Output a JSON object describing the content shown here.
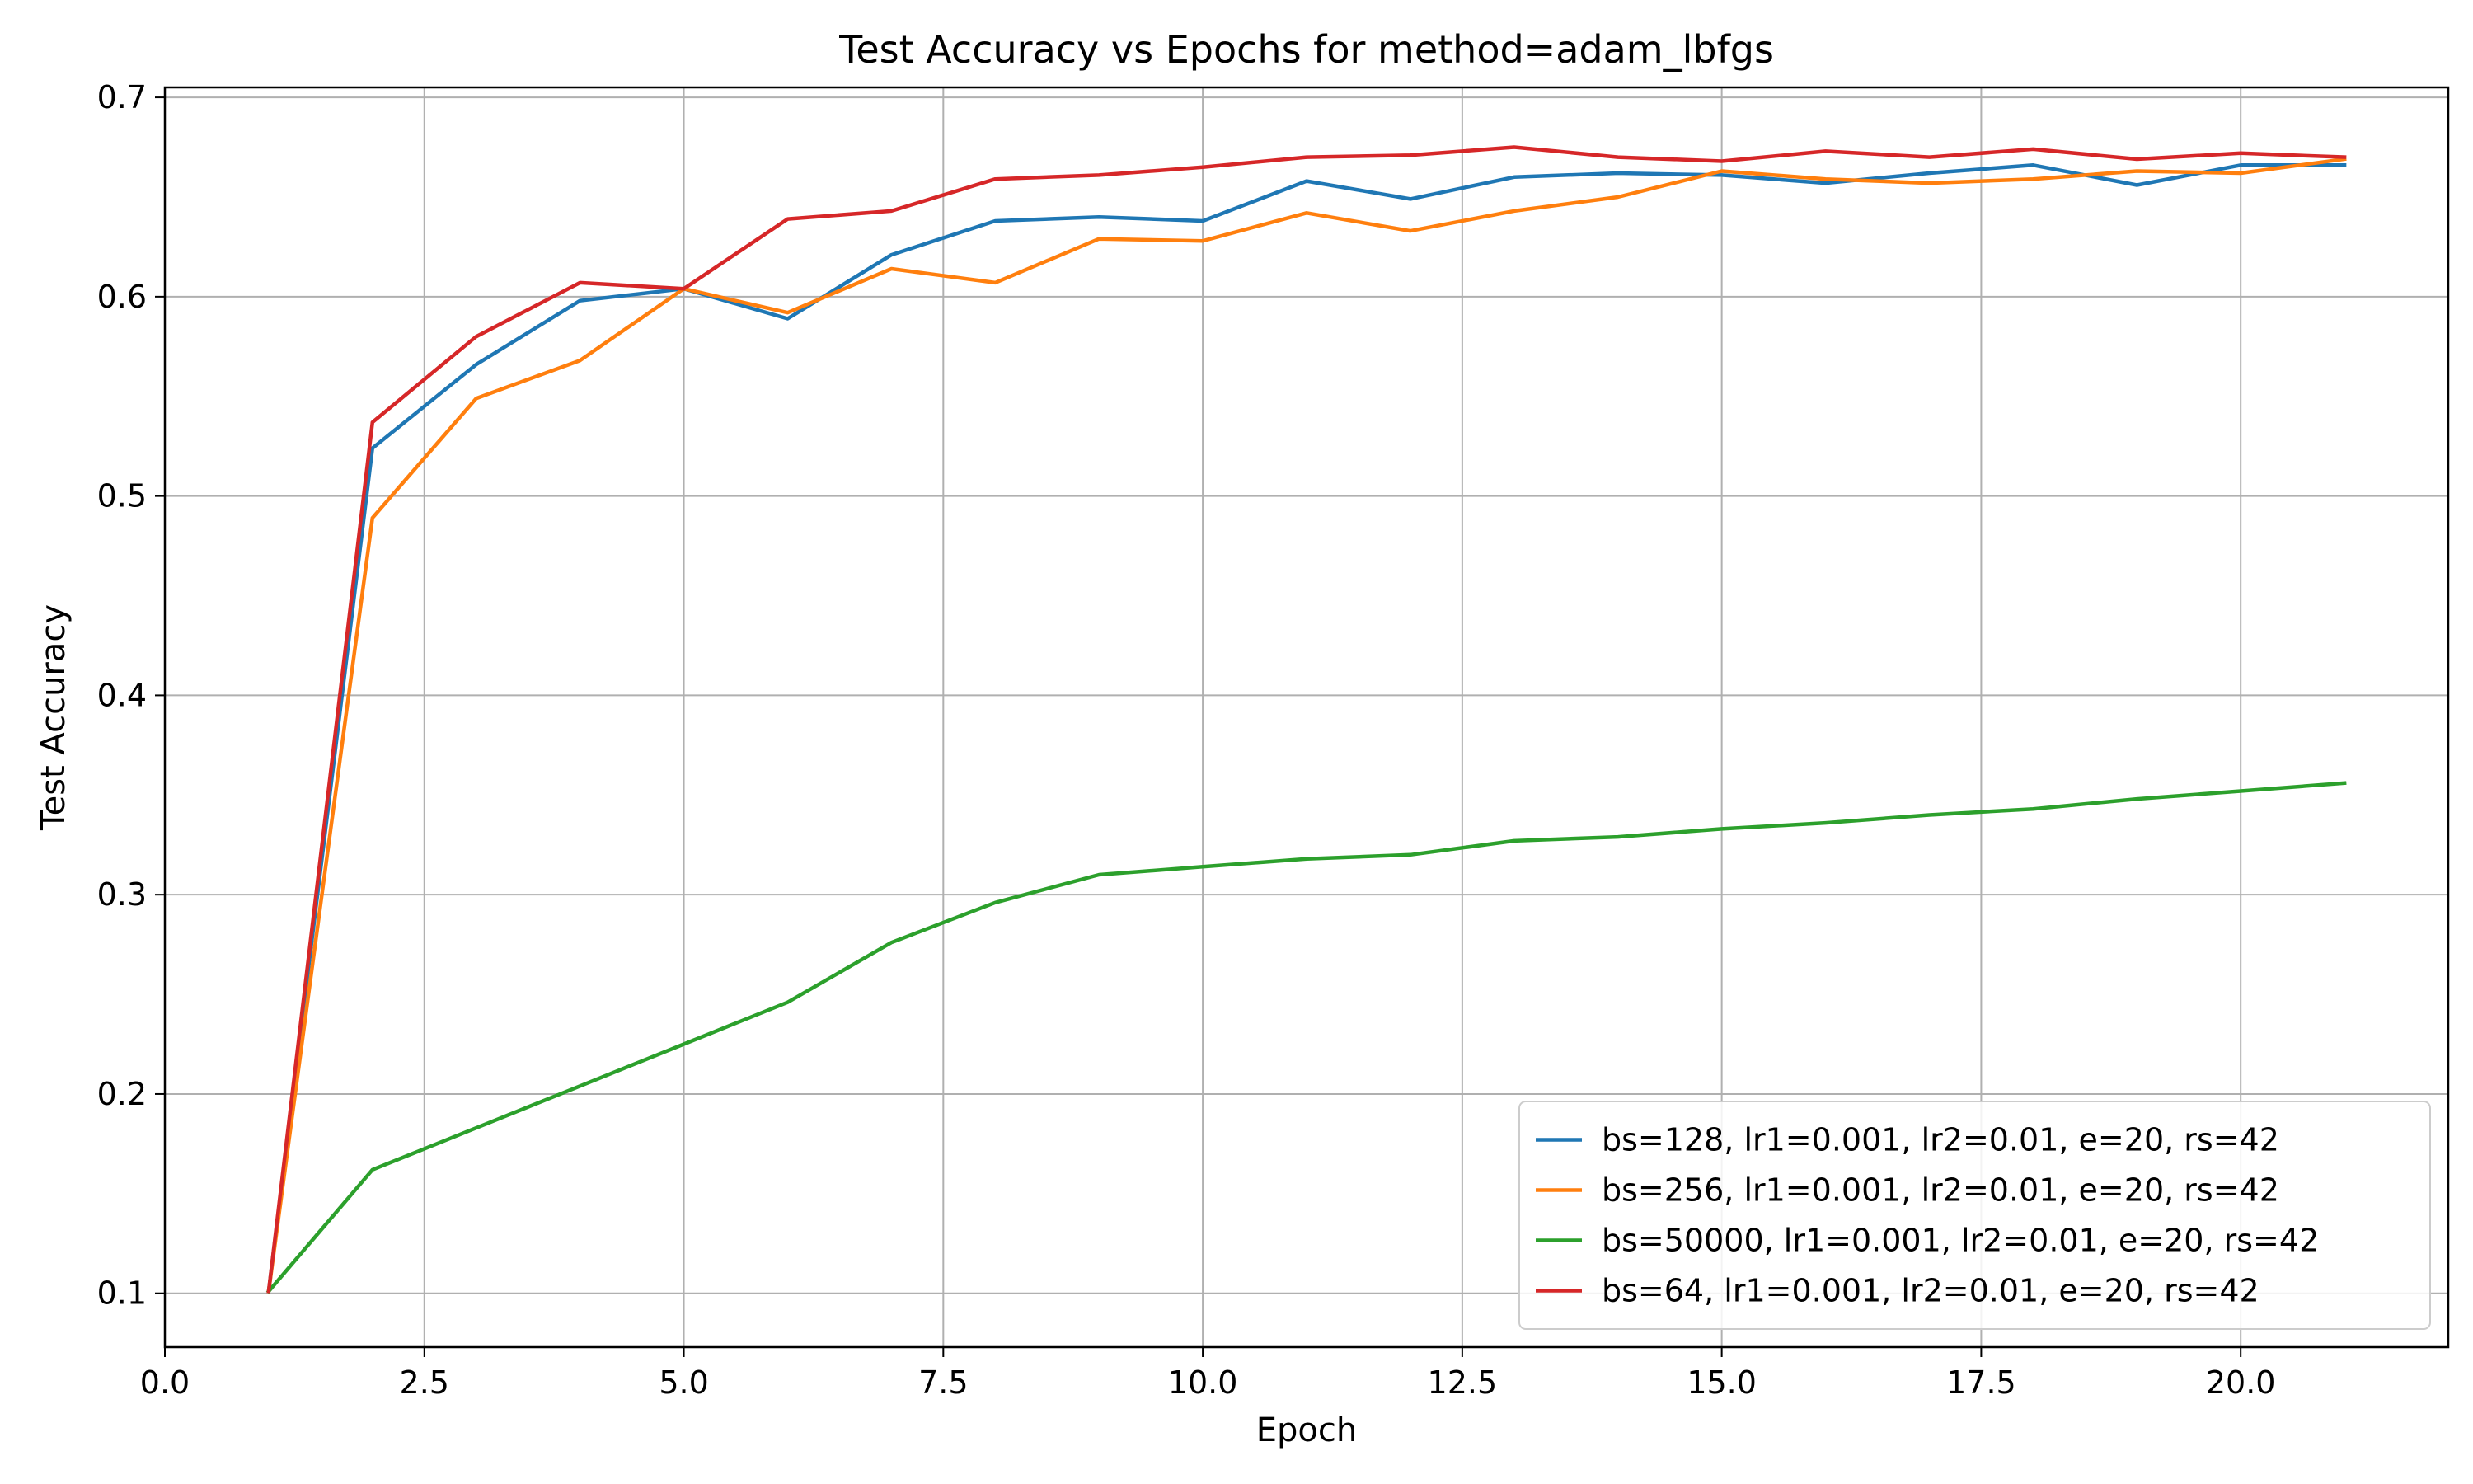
{
  "chart_data": {
    "type": "line",
    "title": "Test Accuracy vs Epochs for method=adam_lbfgs",
    "xlabel": "Epoch",
    "ylabel": "Test Accuracy",
    "xlim": [
      0,
      22
    ],
    "ylim": [
      0.073,
      0.705
    ],
    "xticks": [
      0.0,
      2.5,
      5.0,
      7.5,
      10.0,
      12.5,
      15.0,
      17.5,
      20.0
    ],
    "xtick_labels": [
      "0.0",
      "2.5",
      "5.0",
      "7.5",
      "10.0",
      "12.5",
      "15.0",
      "17.5",
      "20.0"
    ],
    "yticks": [
      0.1,
      0.2,
      0.3,
      0.4,
      0.5,
      0.6,
      0.7
    ],
    "ytick_labels": [
      "0.1",
      "0.2",
      "0.3",
      "0.4",
      "0.5",
      "0.6",
      "0.7"
    ],
    "grid": true,
    "legend_position": "lower right",
    "x": [
      1,
      2,
      3,
      4,
      5,
      6,
      7,
      8,
      9,
      10,
      11,
      12,
      13,
      14,
      15,
      16,
      17,
      18,
      19,
      20,
      21
    ],
    "series": [
      {
        "name": "bs=128, lr1=0.001, lr2=0.01, e=20, rs=42",
        "color": "#1f77b4",
        "values": [
          0.101,
          0.524,
          0.566,
          0.598,
          0.604,
          0.589,
          0.621,
          0.638,
          0.64,
          0.638,
          0.658,
          0.649,
          0.66,
          0.662,
          0.661,
          0.657,
          0.662,
          0.666,
          0.656,
          0.666,
          0.666
        ]
      },
      {
        "name": "bs=256, lr1=0.001, lr2=0.01, e=20, rs=42",
        "color": "#ff7f0e",
        "values": [
          0.101,
          0.489,
          0.549,
          0.568,
          0.604,
          0.592,
          0.614,
          0.607,
          0.629,
          0.628,
          0.642,
          0.633,
          0.643,
          0.65,
          0.663,
          0.659,
          0.657,
          0.659,
          0.663,
          0.662,
          0.669
        ]
      },
      {
        "name": "bs=50000, lr1=0.001, lr2=0.01, e=20, rs=42",
        "color": "#2ca02c",
        "values": [
          0.101,
          0.162,
          0.183,
          0.204,
          0.225,
          0.246,
          0.276,
          0.296,
          0.31,
          0.314,
          0.318,
          0.32,
          0.327,
          0.329,
          0.333,
          0.336,
          0.34,
          0.343,
          0.348,
          0.352,
          0.356
        ]
      },
      {
        "name": "bs=64, lr1=0.001, lr2=0.01, e=20, rs=42",
        "color": "#d62728",
        "values": [
          0.101,
          0.537,
          0.58,
          0.607,
          0.604,
          0.639,
          0.643,
          0.659,
          0.661,
          0.665,
          0.67,
          0.671,
          0.675,
          0.67,
          0.668,
          0.673,
          0.67,
          0.674,
          0.669,
          0.672,
          0.67
        ]
      }
    ]
  }
}
